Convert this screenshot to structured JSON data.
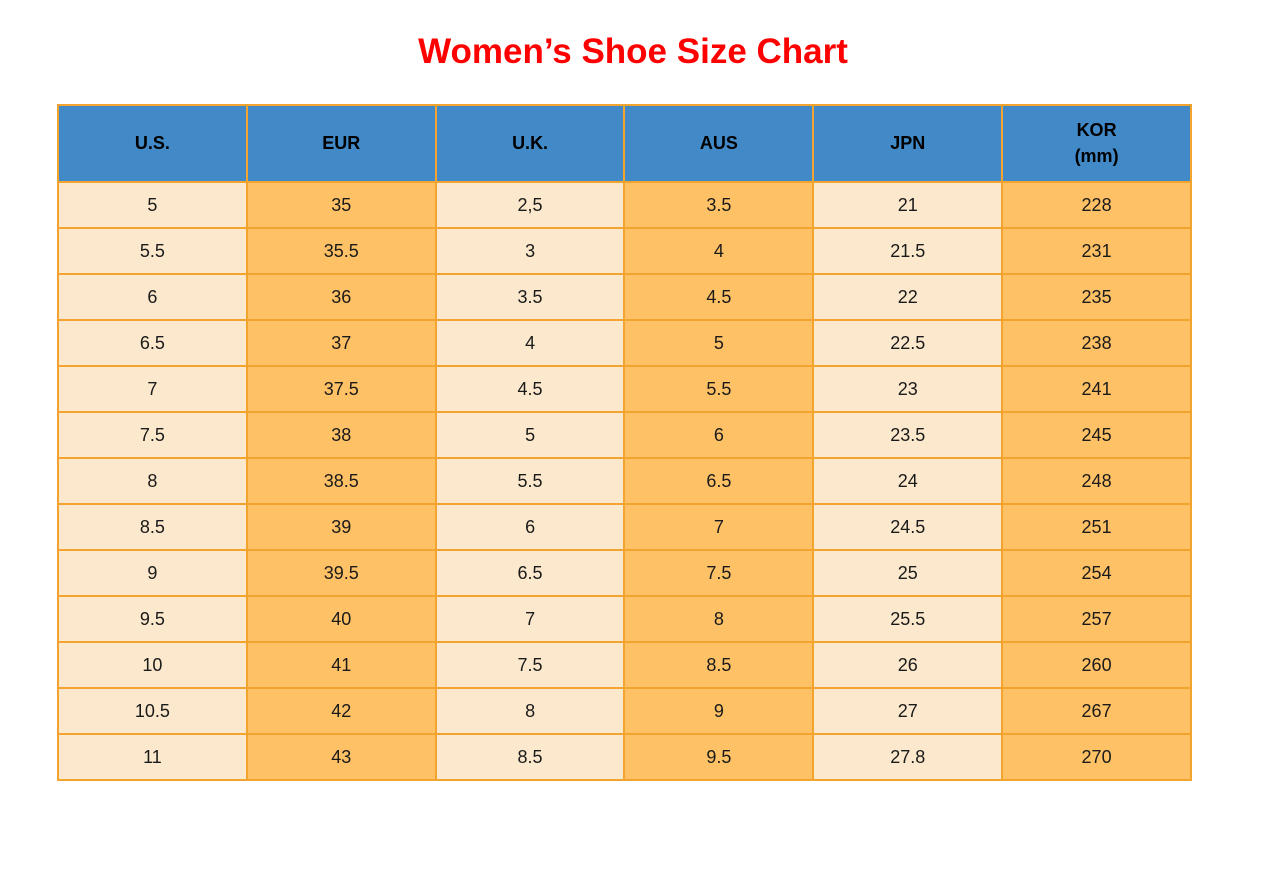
{
  "title": "Women’s Shoe Size Chart",
  "colors": {
    "title_red": "#FF0000",
    "header_blue": "#4189C7",
    "border_orange": "#F2A42E",
    "cell_cream": "#FCE9CD",
    "cell_orange": "#FFC166",
    "text_dark": "#1A1A1A",
    "page_bg": "#FFFFFF"
  },
  "chart_data": {
    "type": "table",
    "title": "Women’s Shoe Size Chart",
    "columns": [
      {
        "key": "us",
        "label": "U.S."
      },
      {
        "key": "eur",
        "label": "EUR"
      },
      {
        "key": "uk",
        "label": "U.K."
      },
      {
        "key": "aus",
        "label": "AUS"
      },
      {
        "key": "jpn",
        "label": "JPN"
      },
      {
        "key": "kor",
        "label": "KOR",
        "sub": "(mm)"
      }
    ],
    "rows": [
      [
        "5",
        "35",
        "2,5",
        "3.5",
        "21",
        "228"
      ],
      [
        "5.5",
        "35.5",
        "3",
        "4",
        "21.5",
        "231"
      ],
      [
        "6",
        "36",
        "3.5",
        "4.5",
        "22",
        "235"
      ],
      [
        "6.5",
        "37",
        "4",
        "5",
        "22.5",
        "238"
      ],
      [
        "7",
        "37.5",
        "4.5",
        "5.5",
        "23",
        "241"
      ],
      [
        "7.5",
        "38",
        "5",
        "6",
        "23.5",
        "245"
      ],
      [
        "8",
        "38.5",
        "5.5",
        "6.5",
        "24",
        "248"
      ],
      [
        "8.5",
        "39",
        "6",
        "7",
        "24.5",
        "251"
      ],
      [
        "9",
        "39.5",
        "6.5",
        "7.5",
        "25",
        "254"
      ],
      [
        "9.5",
        "40",
        "7",
        "8",
        "25.5",
        "257"
      ],
      [
        "10",
        "41",
        "7.5",
        "8.5",
        "26",
        "260"
      ],
      [
        "10.5",
        "42",
        "8",
        "9",
        "27",
        "267"
      ],
      [
        "11",
        "43",
        "8.5",
        "9.5",
        "27.8",
        "270"
      ]
    ]
  }
}
